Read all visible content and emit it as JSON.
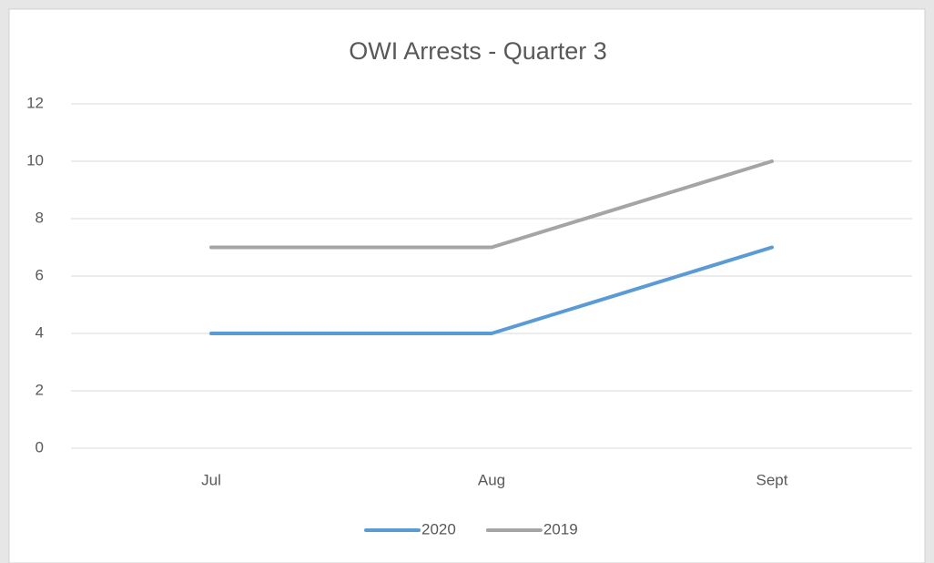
{
  "chart_data": {
    "type": "line",
    "title": "OWI Arrests - Quarter 3",
    "categories": [
      "Jul",
      "Aug",
      "Sept"
    ],
    "series": [
      {
        "name": "2020",
        "color": "#5b9bd5",
        "values": [
          4,
          4,
          7
        ]
      },
      {
        "name": "2019",
        "color": "#a5a5a5",
        "values": [
          7,
          7,
          10
        ]
      }
    ],
    "ylim": [
      0,
      12
    ],
    "yticks": [
      0,
      2,
      4,
      6,
      8,
      10,
      12
    ],
    "grid": true,
    "legend": "bottom"
  }
}
